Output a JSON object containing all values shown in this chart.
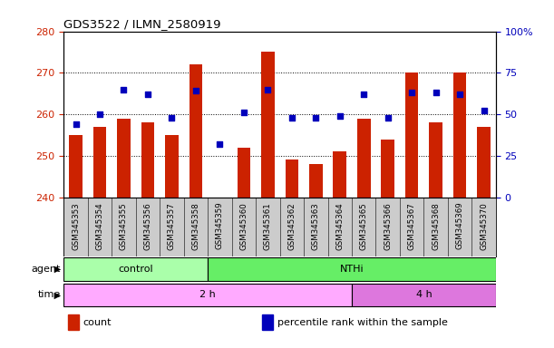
{
  "title": "GDS3522 / ILMN_2580919",
  "samples": [
    "GSM345353",
    "GSM345354",
    "GSM345355",
    "GSM345356",
    "GSM345357",
    "GSM345358",
    "GSM345359",
    "GSM345360",
    "GSM345361",
    "GSM345362",
    "GSM345363",
    "GSM345364",
    "GSM345365",
    "GSM345366",
    "GSM345367",
    "GSM345368",
    "GSM345369",
    "GSM345370"
  ],
  "bar_values": [
    255,
    257,
    259,
    258,
    255,
    272,
    240,
    252,
    275,
    249,
    248,
    251,
    259,
    254,
    270,
    258,
    270,
    257
  ],
  "dot_values": [
    44,
    50,
    65,
    62,
    48,
    64,
    32,
    51,
    65,
    48,
    48,
    49,
    62,
    48,
    63,
    63,
    62,
    52
  ],
  "ylim_left": [
    240,
    280
  ],
  "ylim_right": [
    0,
    100
  ],
  "yticks_left": [
    240,
    250,
    260,
    270,
    280
  ],
  "yticks_right": [
    0,
    25,
    50,
    75,
    100
  ],
  "agent_groups": [
    {
      "label": "control",
      "start": 0,
      "end": 6,
      "color": "#aaffaa"
    },
    {
      "label": "NTHi",
      "start": 6,
      "end": 18,
      "color": "#66ee66"
    }
  ],
  "time_groups": [
    {
      "label": "2 h",
      "start": 0,
      "end": 12,
      "color": "#ffaaff"
    },
    {
      "label": "4 h",
      "start": 12,
      "end": 18,
      "color": "#dd77dd"
    }
  ],
  "bar_color": "#cc2200",
  "dot_color": "#0000bb",
  "bar_width": 0.55,
  "grid_color": "#000000",
  "bg_color": "#ffffff",
  "sample_bg": "#cccccc",
  "tick_label_color_left": "#cc2200",
  "tick_label_color_right": "#0000bb",
  "legend": [
    {
      "label": "count",
      "color": "#cc2200"
    },
    {
      "label": "percentile rank within the sample",
      "color": "#0000bb"
    }
  ]
}
